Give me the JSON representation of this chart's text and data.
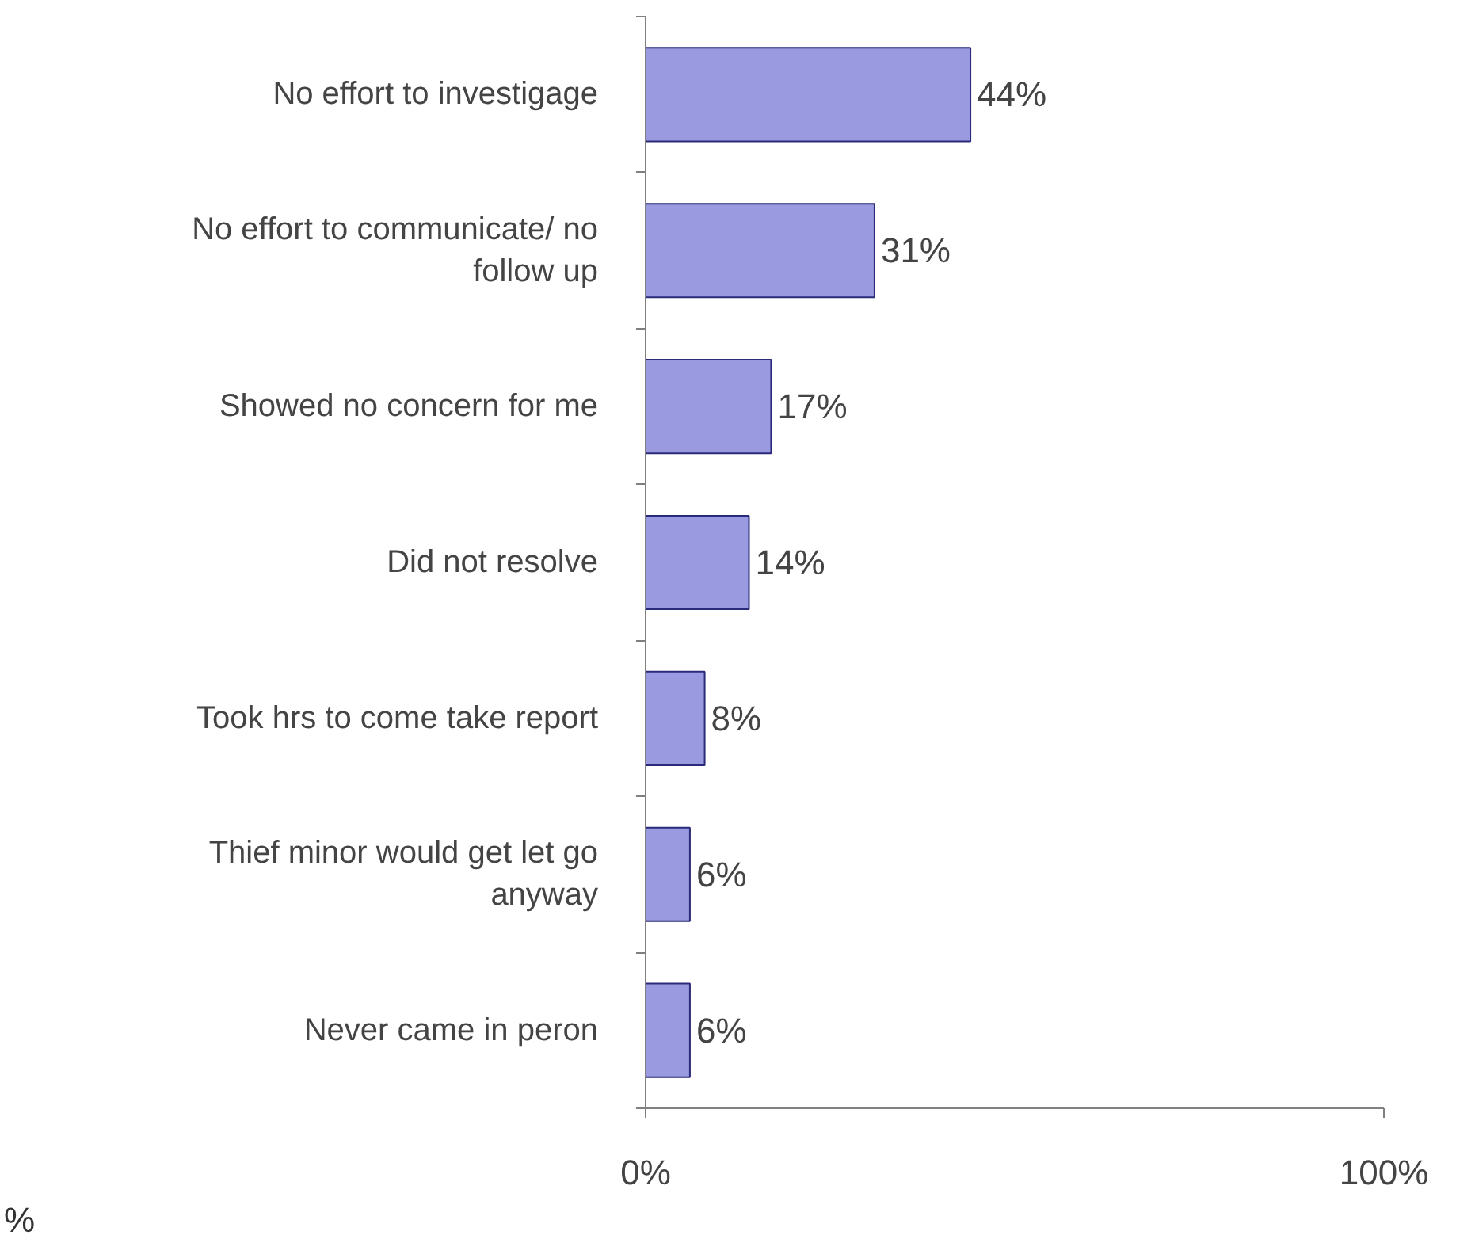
{
  "chart_data": {
    "type": "bar",
    "orientation": "horizontal",
    "categories": [
      "No effort to investigage",
      "No effort to communicate/ no follow up",
      "Showed no concern for me",
      "Did not resolve",
      "Took hrs to come take report",
      "Thief minor would get let go anyway",
      "Never came in peron"
    ],
    "values": [
      44,
      31,
      17,
      14,
      8,
      6,
      6
    ],
    "value_labels": [
      "44%",
      "31%",
      "17%",
      "14%",
      "8%",
      "6%",
      "6%"
    ],
    "color": "#9a9ae0",
    "xlim": [
      0,
      100
    ],
    "xticks": [
      {
        "value": 0,
        "label": "0%"
      },
      {
        "value": 100,
        "label": "100%"
      }
    ],
    "grid": false,
    "annotations": [
      "%"
    ]
  }
}
